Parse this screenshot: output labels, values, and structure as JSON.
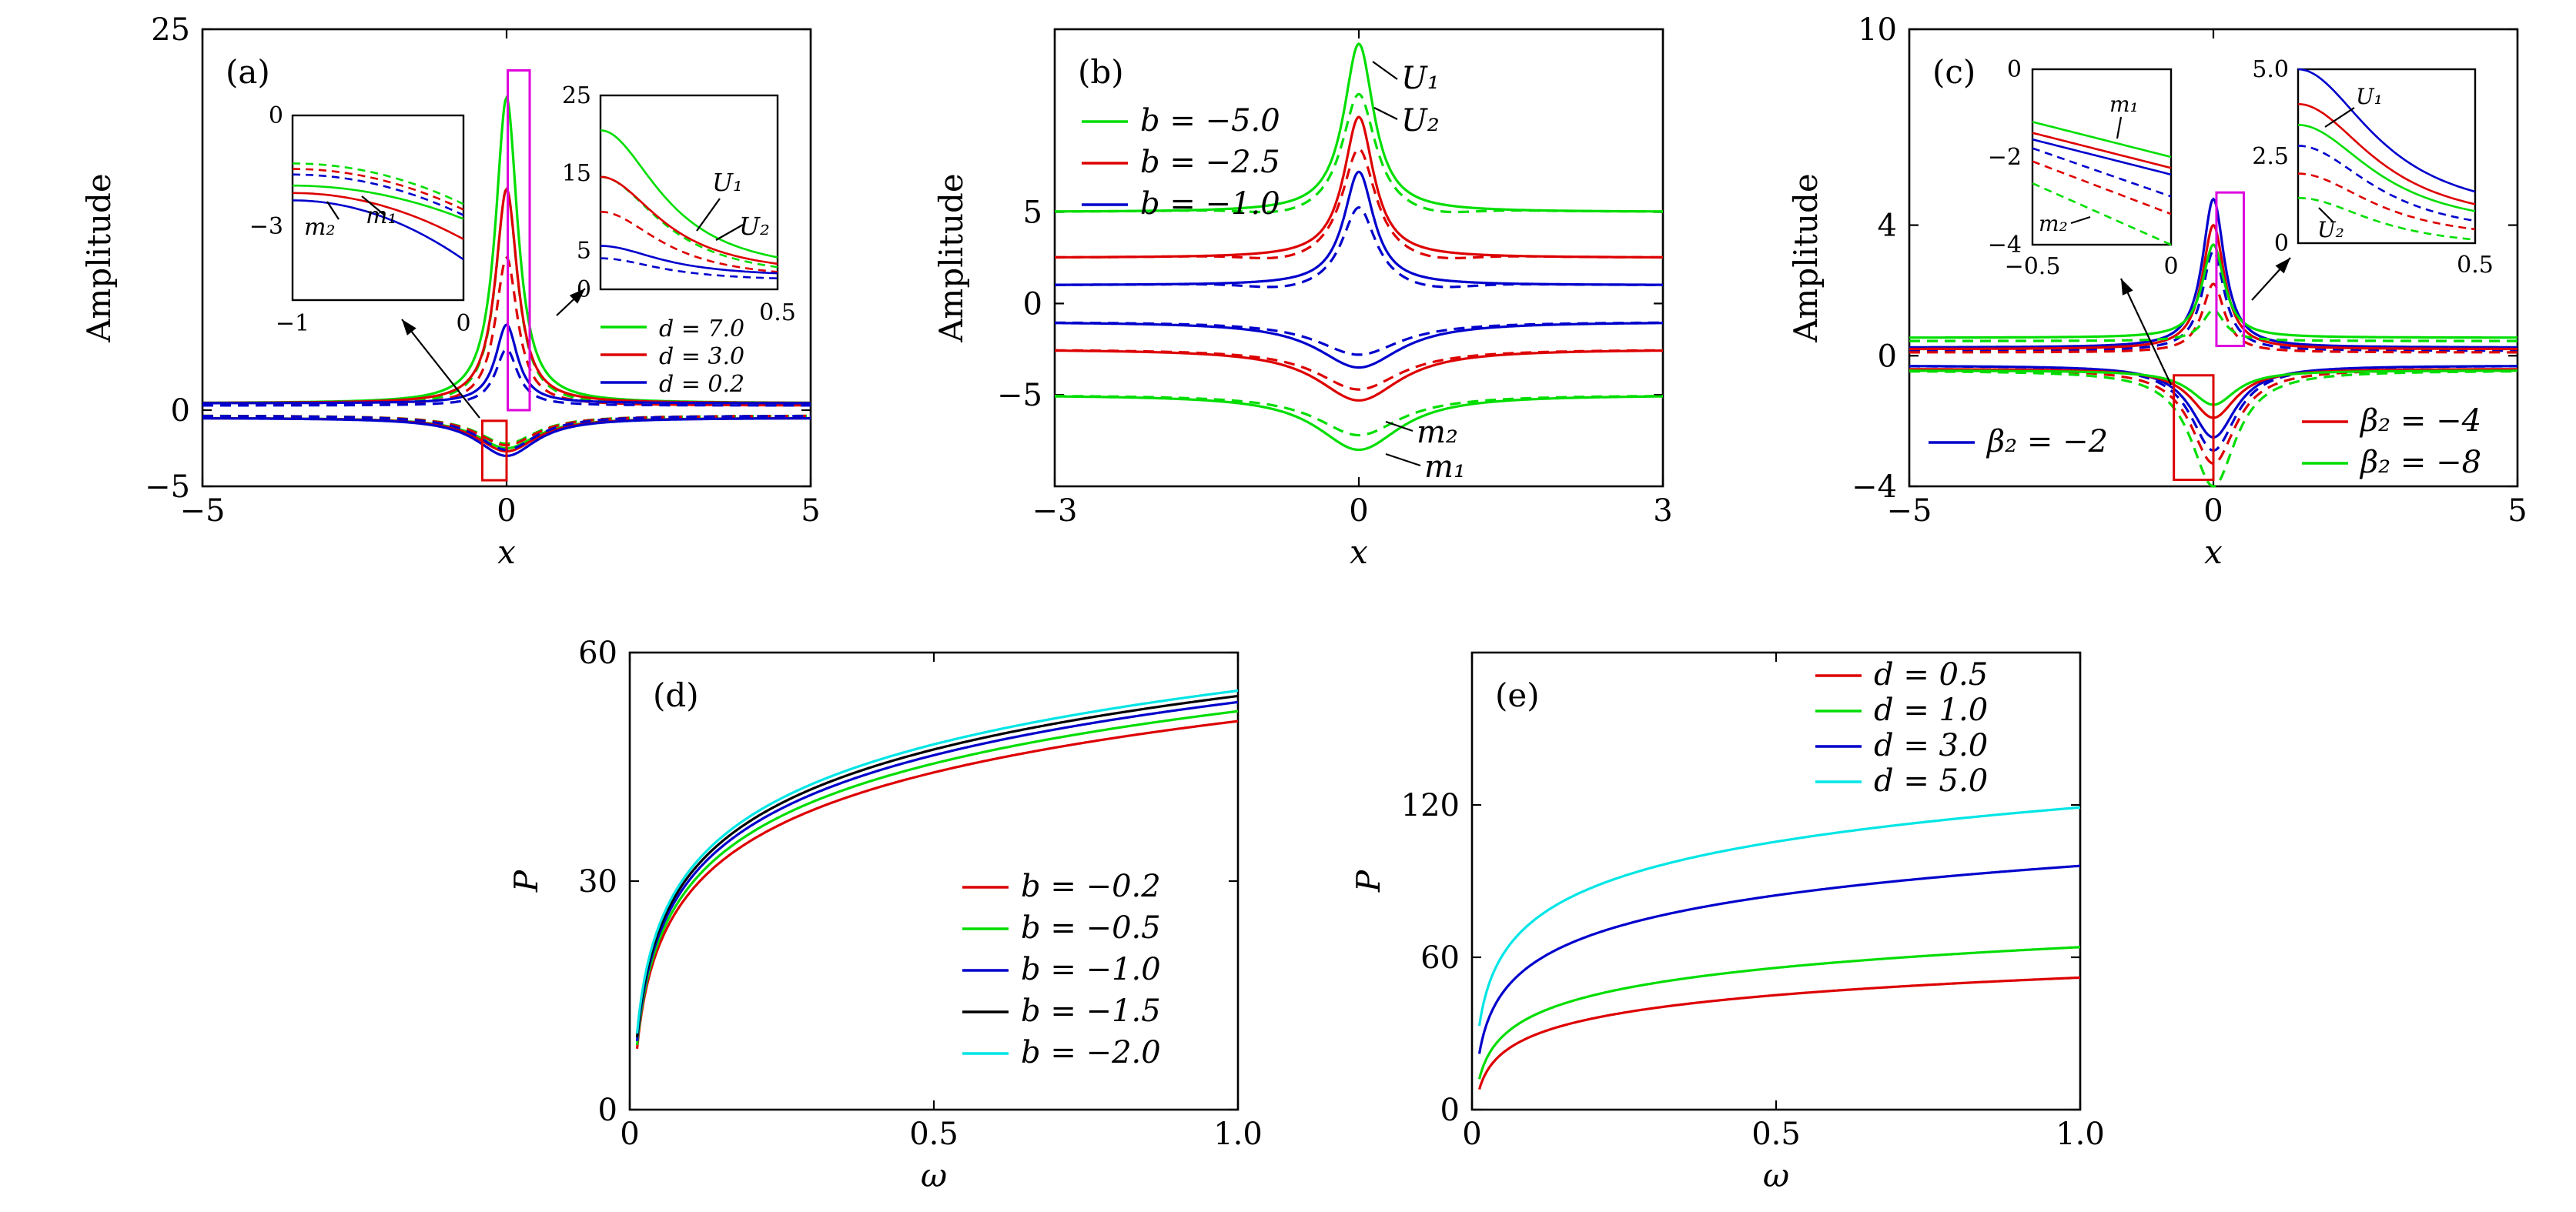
{
  "figure": {
    "title": ""
  },
  "chart_data": [
    {
      "id": "a",
      "type": "line",
      "panel_label": "(a)",
      "xlabel": "x",
      "ylabel": "Amplitude",
      "xlim": [
        -5,
        5
      ],
      "ylim": [
        -5,
        25
      ],
      "xticks": [
        "−5",
        "0",
        "5"
      ],
      "xtickvals": [
        -5,
        0,
        5
      ],
      "yticks": [
        "25",
        "0",
        "−5"
      ],
      "ytickvals": [
        25,
        0,
        -5
      ],
      "legend_position": "bottom-right",
      "series": [
        {
          "name": "d = 7.0",
          "color": "#00dd00",
          "U1_peak": 20.5,
          "U2_peak": 14.5,
          "m1_min": -2.5,
          "m2_min": -2.2,
          "width": 0.2
        },
        {
          "name": "d = 3.0",
          "color": "#dd0000",
          "U1_peak": 14.5,
          "U2_peak": 10.0,
          "m1_min": -2.7,
          "m2_min": -2.3,
          "width": 0.2
        },
        {
          "name": "d = 0.2",
          "color": "#0000cc",
          "U1_peak": 5.6,
          "U2_peak": 4.0,
          "m1_min": -3.0,
          "m2_min": -2.6,
          "width": 0.2
        }
      ],
      "insets": [
        {
          "xlim": [
            -1,
            0
          ],
          "ylim": [
            -5,
            0
          ],
          "xticks": [
            "−1",
            "0"
          ],
          "yticks": [
            "0",
            "−3"
          ],
          "labels": [
            "m₂",
            "m₁"
          ]
        },
        {
          "xlim": [
            0,
            0.5
          ],
          "ylim": [
            0,
            25
          ],
          "xticks": [
            "0.5"
          ],
          "yticks": [
            "25",
            "15",
            "5",
            "0"
          ],
          "labels": [
            "U₁",
            "U₂"
          ]
        }
      ]
    },
    {
      "id": "b",
      "type": "line",
      "panel_label": "(b)",
      "xlabel": "x",
      "ylabel": "Amplitude",
      "xlim": [
        -3,
        3
      ],
      "ylim": [
        -10,
        15
      ],
      "xticks": [
        "−3",
        "0",
        "3"
      ],
      "xtickvals": [
        -3,
        0,
        3
      ],
      "yticks": [
        "5",
        "0",
        "−5"
      ],
      "ytickvals": [
        5,
        0,
        -5
      ],
      "legend_position": "top-left",
      "annotations": [
        "U₁",
        "U₂",
        "m₂",
        "m₁"
      ],
      "series": [
        {
          "name": "b = −5.0",
          "color": "#00dd00",
          "base": 5.0,
          "U1_peak": 14.2,
          "U2_peak": 11.5,
          "m1_min": -8.0,
          "m2_min": -7.2
        },
        {
          "name": "b = −2.5",
          "color": "#dd0000",
          "base": 2.5,
          "U1_peak": 10.2,
          "U2_peak": 8.5,
          "m1_min": -5.3,
          "m2_min": -4.7
        },
        {
          "name": "b = −1.0",
          "color": "#0000cc",
          "base": 1.0,
          "U1_peak": 7.2,
          "U2_peak": 5.3,
          "m1_min": -3.5,
          "m2_min": -2.8
        }
      ]
    },
    {
      "id": "c",
      "type": "line",
      "panel_label": "(c)",
      "xlabel": "x",
      "ylabel": "Amplitude",
      "xlim": [
        -5,
        5
      ],
      "ylim": [
        -4,
        10
      ],
      "xticks": [
        "−5",
        "0",
        "5"
      ],
      "xtickvals": [
        -5,
        0,
        5
      ],
      "yticks": [
        "10",
        "4",
        "0",
        "−4"
      ],
      "ytickvals": [
        10,
        4,
        0,
        -4
      ],
      "legend_position": "bottom",
      "series": [
        {
          "name": "β₂ = −2",
          "color": "#0000cc",
          "U1_peak": 4.8,
          "U2_peak": 3.2,
          "m1_min": -2.5,
          "m2_min": -2.9,
          "base_u": 0.25,
          "base_m": -0.3
        },
        {
          "name": "β₂ = −4",
          "color": "#dd0000",
          "U1_peak": 4.0,
          "U2_peak": 2.2,
          "m1_min": -1.9,
          "m2_min": -3.3,
          "base_u": 0.2,
          "base_m": -0.4
        },
        {
          "name": "β₂ = −8",
          "color": "#00dd00",
          "U1_peak": 3.4,
          "U2_peak": 1.4,
          "m1_min": -1.5,
          "m2_min": -4.0,
          "base_u": 0.55,
          "base_m": -0.45
        }
      ],
      "insets": [
        {
          "xlim": [
            -0.5,
            0
          ],
          "ylim": [
            -4,
            0
          ],
          "xticks": [
            "−0.5",
            "0"
          ],
          "yticks": [
            "0",
            "−2",
            "−4"
          ],
          "labels": [
            "m₁",
            "m₂"
          ]
        },
        {
          "xlim": [
            0,
            0.5
          ],
          "ylim": [
            0,
            5
          ],
          "xticks": [
            "0.5"
          ],
          "yticks": [
            "5.0",
            "2.5",
            "0"
          ],
          "labels": [
            "U₁",
            "U₂"
          ]
        }
      ]
    },
    {
      "id": "d",
      "type": "line",
      "panel_label": "(d)",
      "xlabel": "ω",
      "ylabel": "P",
      "xlim": [
        0,
        1
      ],
      "ylim": [
        0,
        60
      ],
      "xticks": [
        "0",
        "0.5",
        "1.0"
      ],
      "xtickvals": [
        0,
        0.5,
        1
      ],
      "yticks": [
        "60",
        "30",
        "0"
      ],
      "ytickvals": [
        60,
        30,
        0
      ],
      "legend_position": "bottom-right",
      "series": [
        {
          "name": "b = −0.2",
          "color": "#dd0000",
          "start": 8.0,
          "end": 51.0
        },
        {
          "name": "b = −0.5",
          "color": "#00dd00",
          "start": 8.5,
          "end": 52.3
        },
        {
          "name": "b = −1.0",
          "color": "#0000cc",
          "start": 9.0,
          "end": 53.5
        },
        {
          "name": "b = −1.5",
          "color": "#000000",
          "start": 9.5,
          "end": 54.3
        },
        {
          "name": "b = −2.0",
          "color": "#00e5e5",
          "start": 10.0,
          "end": 55.0
        }
      ]
    },
    {
      "id": "e",
      "type": "line",
      "panel_label": "(e)",
      "xlabel": "ω",
      "ylabel": "P",
      "xlim": [
        0,
        1
      ],
      "ylim": [
        0,
        180
      ],
      "xticks": [
        "0",
        "0.5",
        "1.0"
      ],
      "xtickvals": [
        0,
        0.5,
        1
      ],
      "yticks": [
        "120",
        "60",
        "0"
      ],
      "ytickvals": [
        120,
        60,
        0
      ],
      "legend_position": "top-left",
      "series": [
        {
          "name": "d = 0.5",
          "color": "#dd0000",
          "start": 8.0,
          "end": 52.0
        },
        {
          "name": "d = 1.0",
          "color": "#00dd00",
          "start": 12.0,
          "end": 64.0
        },
        {
          "name": "d = 3.0",
          "color": "#0000cc",
          "start": 22.0,
          "end": 96.0
        },
        {
          "name": "d = 5.0",
          "color": "#00e5e5",
          "start": 33.0,
          "end": 119.0
        }
      ]
    }
  ]
}
